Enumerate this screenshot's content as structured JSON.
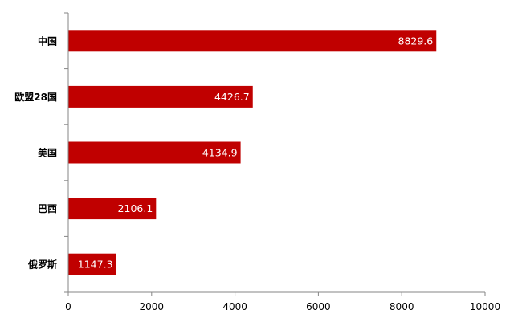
{
  "chart_data": {
    "type": "bar",
    "orientation": "horizontal",
    "categories": [
      "中国",
      "欧盟28国",
      "美国",
      "巴西",
      "俄罗斯"
    ],
    "values": [
      8829.6,
      4426.7,
      4134.9,
      2106.1,
      1147.3
    ],
    "value_labels": [
      "8829.6",
      "4426.7",
      "4134.9",
      "2106.1",
      "1147.3"
    ],
    "xlim": [
      0,
      10000
    ],
    "x_ticks": [
      0,
      2000,
      4000,
      6000,
      8000,
      10000
    ],
    "x_tick_labels": [
      "0",
      "2000",
      "4000",
      "6000",
      "8000",
      "10000"
    ],
    "title": "",
    "xlabel": "",
    "ylabel": "",
    "grid": false,
    "legend": "none",
    "bar_color": "#C00000",
    "data_label_color": "#FFFFFF"
  }
}
